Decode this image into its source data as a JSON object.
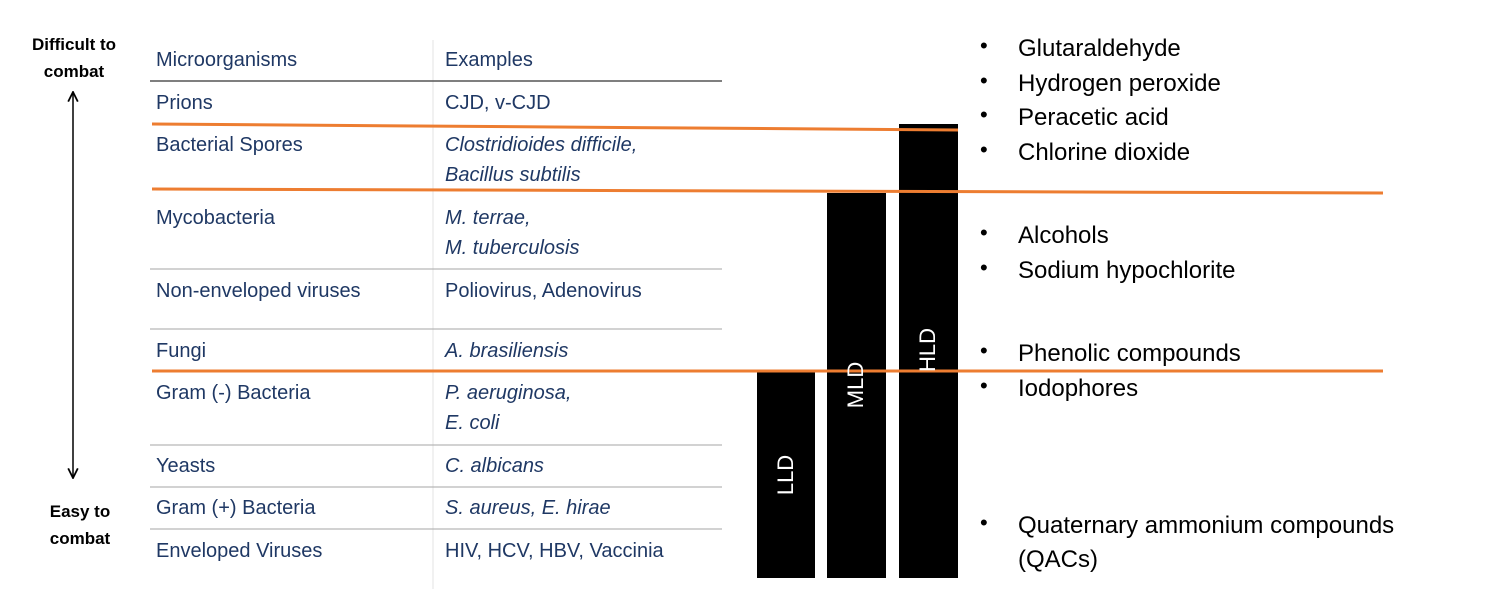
{
  "axis_labels": {
    "top": "Difficult to combat",
    "bottom": "Easy to combat"
  },
  "table": {
    "header": [
      "Microorganisms",
      "Examples"
    ],
    "rows": [
      [
        "Prions",
        [
          "CJD, v-CJD"
        ]
      ],
      [
        "Bacterial Spores",
        [
          "Clostridioides difficile,",
          "Bacillus subtilis"
        ]
      ],
      [
        "Mycobacteria",
        [
          "M. terrae,",
          "M. tuberculosis"
        ]
      ],
      [
        "Non-enveloped viruses",
        [
          "Poliovirus, Adenovirus"
        ]
      ],
      [
        "Fungi",
        [
          "A. brasiliensis"
        ]
      ],
      [
        "Gram (-) Bacteria",
        [
          "P. aeruginosa,",
          "E. coli"
        ]
      ],
      [
        "Yeasts",
        [
          "C. albicans"
        ]
      ],
      [
        "Gram (+) Bacteria",
        [
          "S. aureus, E. hirae"
        ]
      ],
      [
        "Enveloped Viruses",
        [
          "HIV, HCV, HBV, Vaccinia"
        ]
      ]
    ]
  },
  "levels": [
    "LLD",
    "MLD",
    "HLD"
  ],
  "disinfectants": [
    [
      "Glutaraldehyde",
      "Hydrogen peroxide",
      "Peracetic acid",
      "Chlorine dioxide"
    ],
    [
      "Alcohols",
      "Sodium hypochlorite"
    ],
    [
      "Phenolic compounds",
      "Iodophores"
    ],
    [
      "Quaternary ammonium compounds (QACs)"
    ]
  ]
}
